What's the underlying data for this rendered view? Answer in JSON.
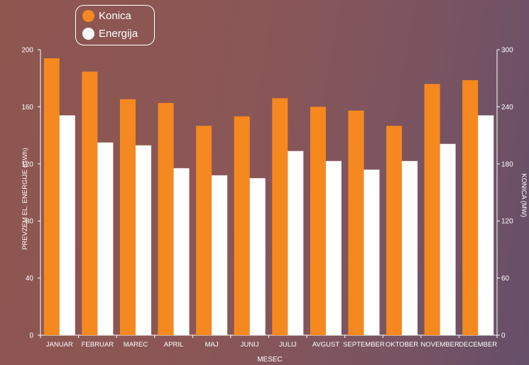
{
  "chart_data": {
    "type": "bar",
    "categories": [
      "JANUAR",
      "FEBRUAR",
      "MAREC",
      "APRIL",
      "MAJ",
      "JUNIJ",
      "JULIJ",
      "AVGUST",
      "SEPTEMBER",
      "OKTOBER",
      "NOVEMBER",
      "DECEMBER"
    ],
    "series": [
      {
        "name": "Konica",
        "axis": "right",
        "color": "#f5891f",
        "values": [
          291,
          277,
          248,
          244,
          220,
          230,
          249,
          240,
          236,
          220,
          264,
          268
        ]
      },
      {
        "name": "Energija",
        "axis": "left",
        "color": "#ffffff",
        "values": [
          154,
          135,
          133,
          117,
          112,
          110,
          129,
          122,
          116,
          122,
          134,
          154
        ]
      }
    ],
    "xlabel": "MESEC",
    "ylabel": "PREVZEM EL. ENERGIJE (GWh)",
    "y2label": "KONICA (MW)",
    "ylim": [
      0,
      200
    ],
    "yticks": [
      "0",
      "40",
      "80",
      "120",
      "160",
      "200"
    ],
    "y2lim": [
      0,
      300
    ],
    "y2ticks": [
      "0",
      "60",
      "120",
      "180",
      "240",
      "300"
    ],
    "legend_position": "top-left",
    "grid": false
  }
}
